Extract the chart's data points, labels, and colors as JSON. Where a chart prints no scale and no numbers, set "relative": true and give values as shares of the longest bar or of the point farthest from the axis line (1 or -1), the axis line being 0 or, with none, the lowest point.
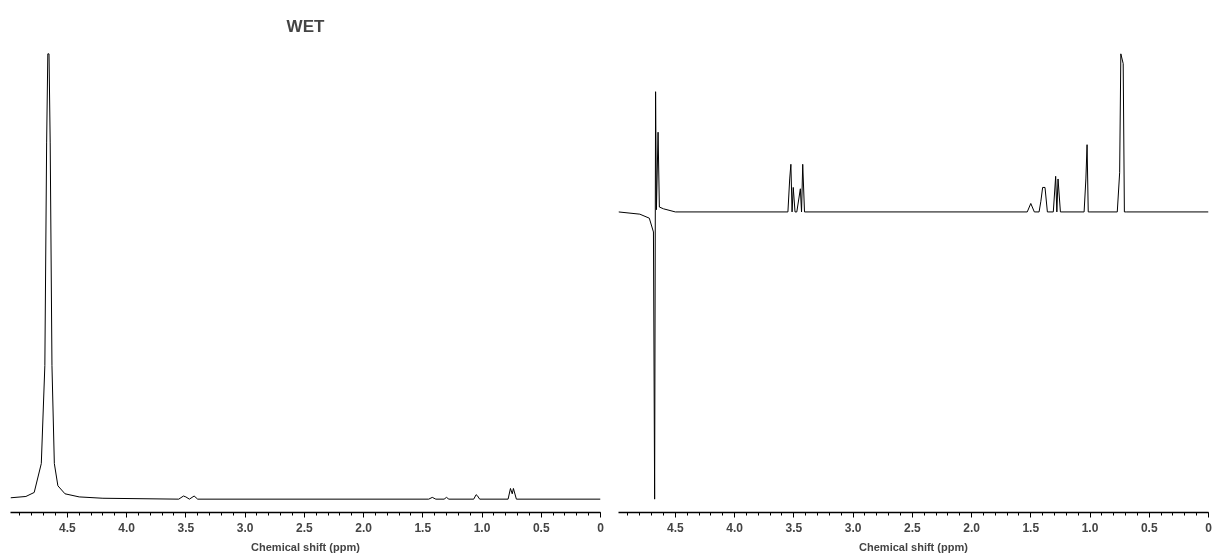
{
  "chart_data": [
    {
      "type": "line",
      "title": "WET",
      "xlabel": "Chemical shift (ppm)",
      "relative": true,
      "xlim": [
        4.98,
        0
      ],
      "xticks": [
        {
          "value": 4.5,
          "label": "4.5"
        },
        {
          "value": 4,
          "label": "4.0"
        },
        {
          "value": 3.5,
          "label": "3.5"
        },
        {
          "value": 3,
          "label": "3.0"
        },
        {
          "value": 2.5,
          "label": "2.5"
        },
        {
          "value": 2,
          "label": "2.0"
        },
        {
          "value": 1.5,
          "label": "1.5"
        },
        {
          "value": 1,
          "label": "1.0"
        },
        {
          "value": 0.5,
          "label": "0.5"
        },
        {
          "value": 0,
          "label": "0"
        }
      ],
      "grid": false,
      "line_style": "solid",
      "marker": "none",
      "series": [
        {
          "color": "#000000",
          "x": [
            4.98,
            4.85,
            4.78,
            4.72,
            4.69,
            4.675,
            4.665,
            4.655,
            4.645,
            4.63,
            4.61,
            4.58,
            4.52,
            4.4,
            4.2,
            3.56,
            3.52,
            3.5,
            3.47,
            3.43,
            3.4,
            1.45,
            1.42,
            1.39,
            1.32,
            1.3,
            1.28,
            1.07,
            1.05,
            1.04,
            1.02,
            0.78,
            0.76,
            0.745,
            0.735,
            0.71,
            0
          ],
          "values": [
            0.003,
            0.006,
            0.015,
            0.08,
            0.3,
            0.8,
            1,
            1,
            0.8,
            0.3,
            0.08,
            0.03,
            0.012,
            0.005,
            0.002,
            0,
            0.007,
            0.005,
            0,
            0.007,
            0,
            0,
            0.004,
            0,
            0,
            0.004,
            0,
            0,
            0.01,
            0.008,
            0,
            0,
            0.024,
            0.012,
            0.024,
            0,
            0
          ]
        }
      ]
    },
    {
      "type": "line",
      "xlabel": "Chemical shift (ppm)",
      "relative": true,
      "xlim": [
        4.98,
        0
      ],
      "xticks": [
        {
          "value": 4.5,
          "label": "4.5"
        },
        {
          "value": 4,
          "label": "4.0"
        },
        {
          "value": 3.5,
          "label": "3.5"
        },
        {
          "value": 3,
          "label": "3.0"
        },
        {
          "value": 2.5,
          "label": "2.5"
        },
        {
          "value": 2,
          "label": "2.0"
        },
        {
          "value": 1.5,
          "label": "1.5"
        },
        {
          "value": 1,
          "label": "1.0"
        },
        {
          "value": 0.5,
          "label": "0.5"
        },
        {
          "value": 0,
          "label": "0"
        }
      ],
      "grid": false,
      "line_style": "solid",
      "marker": "none",
      "series": [
        {
          "color": "#000000",
          "x": [
            4.98,
            4.8,
            4.72,
            4.685,
            4.675,
            4.667,
            4.66,
            4.646,
            4.635,
            4.6,
            4.5,
            3.55,
            3.535,
            3.525,
            3.515,
            3.505,
            3.49,
            3.475,
            3.445,
            3.435,
            3.425,
            3.41,
            1.53,
            1.5,
            1.47,
            1.43,
            1.415,
            1.4,
            1.38,
            1.36,
            1.31,
            1.29,
            1.28,
            1.27,
            1.25,
            1.05,
            1.035,
            1.025,
            1.015,
            1.0,
            0.77,
            0.75,
            0.74,
            0.72,
            0.71,
            0.69,
            0
          ],
          "values": [
            0.645,
            0.64,
            0.631,
            0.6,
            0,
            0.915,
            0.65,
            0.824,
            0.656,
            0.652,
            0.645,
            0.645,
            0.719,
            0.752,
            0.645,
            0.7,
            0.645,
            0.645,
            0.697,
            0.645,
            0.752,
            0.645,
            0.645,
            0.664,
            0.645,
            0.645,
            0.669,
            0.7,
            0.7,
            0.645,
            0.645,
            0.725,
            0.645,
            0.719,
            0.645,
            0.645,
            0.719,
            0.796,
            0.645,
            0.645,
            0.645,
            0.733,
            1,
            0.978,
            0.645,
            0.645,
            0.645
          ]
        }
      ]
    }
  ]
}
